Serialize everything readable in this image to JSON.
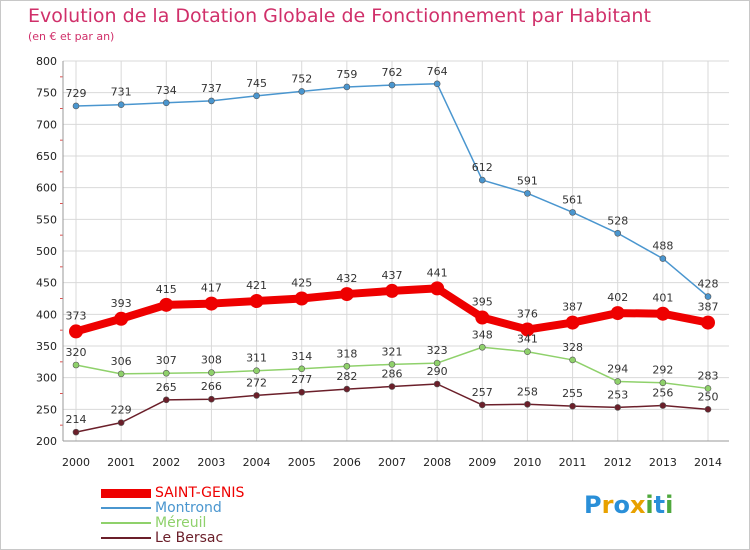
{
  "title": "Evolution de la Dotation Globale de Fonctionnement par Habitant",
  "subtitle": "(en € et par an)",
  "logo": {
    "letters": [
      "P",
      "r",
      "o",
      "x",
      "i",
      "t",
      "i"
    ],
    "colors": [
      "#2a8fd8",
      "#e8a100",
      "#2a8fd8",
      "#e8a100",
      "#4fa83d",
      "#2a8fd8",
      "#4fa83d"
    ]
  },
  "chart_data": {
    "type": "line",
    "title": "Evolution de la Dotation Globale de Fonctionnement par Habitant",
    "subtitle": "(en € et par an)",
    "xlabel": "",
    "ylabel": "",
    "ylim": [
      200,
      800
    ],
    "yticks": [
      "200",
      "250",
      "300",
      "350",
      "400",
      "450",
      "500",
      "550",
      "600",
      "650",
      "700",
      "750",
      "800"
    ],
    "grid": true,
    "legend_position": "bottom-left",
    "categories": [
      "2000",
      "2001",
      "2002",
      "2003",
      "2004",
      "2005",
      "2006",
      "2007",
      "2008",
      "2009",
      "2010",
      "2011",
      "2012",
      "2013",
      "2014"
    ],
    "series": [
      {
        "name": "SAINT-GENIS",
        "color": "#ee0000",
        "values": [
          373,
          393,
          415,
          417,
          421,
          425,
          432,
          437,
          441,
          395,
          376,
          387,
          402,
          401,
          387
        ]
      },
      {
        "name": "Montrond",
        "color": "#4a96cf",
        "values": [
          729,
          731,
          734,
          737,
          745,
          752,
          759,
          762,
          764,
          612,
          591,
          561,
          528,
          488,
          428
        ]
      },
      {
        "name": "Méreuil",
        "color": "#8fd16b",
        "values": [
          320,
          306,
          307,
          308,
          311,
          314,
          318,
          321,
          323,
          348,
          341,
          328,
          294,
          292,
          283
        ]
      },
      {
        "name": "Le Bersac",
        "color": "#6b1f2a",
        "values": [
          214,
          229,
          265,
          266,
          272,
          277,
          282,
          286,
          290,
          257,
          258,
          255,
          253,
          256,
          250
        ]
      }
    ]
  }
}
